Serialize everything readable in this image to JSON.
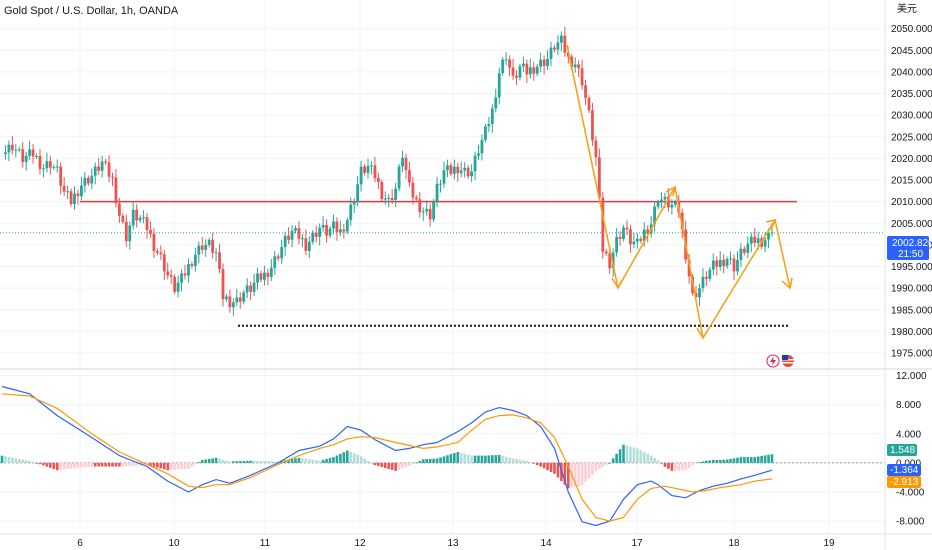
{
  "chart_title": "Gold Spot / U.S. Dollar, 1h, OANDA",
  "currency_label": "美元",
  "colors": {
    "up": "#26a69a",
    "down": "#ef5350",
    "macd": "#2962ff",
    "signal": "#ff9800",
    "hist_up_strong": "#26a69a",
    "hist_up_weak": "#b2dfdb",
    "hist_dn_strong": "#ef5350",
    "hist_dn_weak": "#ffcdd2",
    "resistance": "#e53935",
    "support": "#131722",
    "arrow": "#f7a21b",
    "price_tag": "#2962ff",
    "current_line": "#26a69a"
  },
  "chart_data": [
    {
      "type": "candlestick",
      "title": "Gold Spot / U.S. Dollar, 1h, OANDA",
      "ylim": [
        1972,
        2052
      ],
      "yticks": [
        "2050.000",
        "2045.000",
        "2040.000",
        "2035.000",
        "2030.000",
        "2025.000",
        "2020.000",
        "2015.000",
        "2010.000",
        "2005.000",
        "2000.000",
        "1995.000",
        "1990.000",
        "1985.000",
        "1980.000",
        "1975.000"
      ],
      "xtick_labels": [
        "6",
        "10",
        "11",
        "12",
        "13",
        "14",
        "17",
        "18",
        "19"
      ],
      "current_price": "2002.820",
      "countdown": "21:50",
      "resistance_level": 2010.0,
      "support_level": 1981.3,
      "close_path": [
        [
          0,
          2021
        ],
        [
          3,
          2023
        ],
        [
          6,
          2020
        ],
        [
          9,
          2021
        ],
        [
          12,
          2018
        ],
        [
          14,
          2019
        ],
        [
          16,
          2017
        ],
        [
          18,
          2012
        ],
        [
          20,
          2010
        ],
        [
          23,
          2014
        ],
        [
          26,
          2016
        ],
        [
          29,
          2019
        ],
        [
          32,
          2015
        ],
        [
          34,
          2007
        ],
        [
          36,
          2002
        ],
        [
          38,
          2007
        ],
        [
          40,
          2006
        ],
        [
          42,
          2004
        ],
        [
          44,
          2000
        ],
        [
          46,
          1997
        ],
        [
          48,
          1993
        ],
        [
          50,
          1990
        ],
        [
          52,
          1992
        ],
        [
          54,
          1995
        ],
        [
          56,
          1998
        ],
        [
          58,
          2000
        ],
        [
          60,
          2000
        ],
        [
          62,
          1998
        ],
        [
          64,
          1988
        ],
        [
          66,
          1987
        ],
        [
          68,
          1987
        ],
        [
          70,
          1989
        ],
        [
          72,
          1990
        ],
        [
          74,
          1992
        ],
        [
          76,
          1993
        ],
        [
          78,
          1995
        ],
        [
          80,
          1998
        ],
        [
          82,
          2001
        ],
        [
          84,
          2003
        ],
        [
          86,
          2002
        ],
        [
          88,
          2000
        ],
        [
          90,
          2002
        ],
        [
          92,
          2004
        ],
        [
          94,
          2003
        ],
        [
          96,
          2004
        ],
        [
          98,
          2003
        ],
        [
          100,
          2006
        ],
        [
          102,
          2011
        ],
        [
          104,
          2017
        ],
        [
          106,
          2018
        ],
        [
          108,
          2016
        ],
        [
          110,
          2012
        ],
        [
          112,
          2010
        ],
        [
          114,
          2013
        ],
        [
          116,
          2021
        ],
        [
          118,
          2013
        ],
        [
          120,
          2010
        ],
        [
          122,
          2008
        ],
        [
          124,
          2007
        ],
        [
          126,
          2013
        ],
        [
          128,
          2017
        ],
        [
          130,
          2017
        ],
        [
          132,
          2018
        ],
        [
          134,
          2017
        ],
        [
          136,
          2017
        ],
        [
          138,
          2022
        ],
        [
          140,
          2026
        ],
        [
          142,
          2031
        ],
        [
          144,
          2040
        ],
        [
          146,
          2044
        ],
        [
          148,
          2038
        ],
        [
          150,
          2041
        ],
        [
          152,
          2040
        ],
        [
          154,
          2041
        ],
        [
          156,
          2042
        ],
        [
          158,
          2043
        ],
        [
          160,
          2046
        ],
        [
          162,
          2047
        ],
        [
          164,
          2043
        ],
        [
          166,
          2042
        ],
        [
          168,
          2038
        ],
        [
          170,
          2030
        ],
        [
          172,
          2020
        ],
        [
          174,
          1999
        ],
        [
          176,
          1996
        ],
        [
          178,
          2001
        ],
        [
          180,
          2004
        ],
        [
          182,
          2001
        ],
        [
          184,
          2000
        ],
        [
          186,
          2003
        ],
        [
          188,
          2005
        ],
        [
          190,
          2011
        ],
        [
          192,
          2010
        ],
        [
          194,
          2009
        ],
        [
          196,
          2008
        ],
        [
          198,
          1998
        ],
        [
          200,
          1988
        ],
        [
          202,
          1990
        ],
        [
          204,
          1993
        ],
        [
          206,
          1995
        ],
        [
          208,
          1996
        ],
        [
          210,
          1997
        ],
        [
          212,
          1995
        ],
        [
          214,
          1998
        ],
        [
          216,
          2000
        ],
        [
          218,
          2001
        ],
        [
          220,
          2001
        ],
        [
          222,
          2002
        ],
        [
          223,
          2004
        ]
      ]
    },
    {
      "type": "macd",
      "ylim": [
        -9.5,
        12.5
      ],
      "yticks": [
        "12.000",
        "8.000",
        "4.000",
        "0.000",
        "-4.000",
        "-8.000"
      ],
      "histogram_value": "1.548",
      "macd_value": "-1.364",
      "signal_value": "-2.913",
      "macd_path": [
        [
          0,
          10.5
        ],
        [
          8,
          9.5
        ],
        [
          16,
          6.5
        ],
        [
          26,
          3.5
        ],
        [
          34,
          1.0
        ],
        [
          42,
          -0.5
        ],
        [
          48,
          -2.5
        ],
        [
          54,
          -4.0
        ],
        [
          58,
          -3.0
        ],
        [
          62,
          -2.3
        ],
        [
          66,
          -2.8
        ],
        [
          72,
          -1.7
        ],
        [
          80,
          0.0
        ],
        [
          86,
          1.7
        ],
        [
          92,
          2.3
        ],
        [
          96,
          3.3
        ],
        [
          100,
          5.0
        ],
        [
          104,
          4.5
        ],
        [
          108,
          3.2
        ],
        [
          114,
          1.7
        ],
        [
          118,
          2.0
        ],
        [
          122,
          2.5
        ],
        [
          126,
          2.8
        ],
        [
          132,
          4.3
        ],
        [
          136,
          5.5
        ],
        [
          140,
          7.0
        ],
        [
          144,
          7.6
        ],
        [
          148,
          7.2
        ],
        [
          152,
          6.5
        ],
        [
          156,
          5.0
        ],
        [
          160,
          2.0
        ],
        [
          164,
          -4.0
        ],
        [
          168,
          -8.1
        ],
        [
          172,
          -8.6
        ],
        [
          176,
          -8.0
        ],
        [
          180,
          -5.0
        ],
        [
          184,
          -3.0
        ],
        [
          188,
          -2.5
        ],
        [
          190,
          -3.0
        ],
        [
          194,
          -4.5
        ],
        [
          198,
          -4.8
        ],
        [
          202,
          -3.8
        ],
        [
          206,
          -3.2
        ],
        [
          210,
          -2.8
        ],
        [
          214,
          -2.2
        ],
        [
          218,
          -1.7
        ],
        [
          223,
          -1.0
        ]
      ],
      "signal_path": [
        [
          0,
          9.5
        ],
        [
          8,
          9.2
        ],
        [
          16,
          7.5
        ],
        [
          26,
          4.0
        ],
        [
          34,
          1.5
        ],
        [
          42,
          -0.2
        ],
        [
          48,
          -1.5
        ],
        [
          54,
          -3.2
        ],
        [
          58,
          -3.4
        ],
        [
          62,
          -3.0
        ],
        [
          66,
          -3.0
        ],
        [
          72,
          -2.0
        ],
        [
          80,
          -0.2
        ],
        [
          86,
          1.0
        ],
        [
          92,
          2.0
        ],
        [
          96,
          2.5
        ],
        [
          100,
          3.3
        ],
        [
          104,
          3.6
        ],
        [
          108,
          3.5
        ],
        [
          114,
          2.8
        ],
        [
          118,
          2.4
        ],
        [
          122,
          2.0
        ],
        [
          126,
          2.2
        ],
        [
          132,
          2.8
        ],
        [
          136,
          4.5
        ],
        [
          140,
          6.0
        ],
        [
          144,
          6.5
        ],
        [
          148,
          6.6
        ],
        [
          152,
          6.2
        ],
        [
          156,
          5.5
        ],
        [
          160,
          3.5
        ],
        [
          164,
          -0.5
        ],
        [
          168,
          -5.0
        ],
        [
          172,
          -7.5
        ],
        [
          176,
          -8.0
        ],
        [
          180,
          -7.5
        ],
        [
          184,
          -5.0
        ],
        [
          188,
          -3.5
        ],
        [
          192,
          -3.2
        ],
        [
          196,
          -3.6
        ],
        [
          200,
          -4.0
        ],
        [
          204,
          -3.8
        ],
        [
          208,
          -3.4
        ],
        [
          214,
          -3.0
        ],
        [
          218,
          -2.5
        ],
        [
          223,
          -2.2
        ]
      ]
    }
  ]
}
